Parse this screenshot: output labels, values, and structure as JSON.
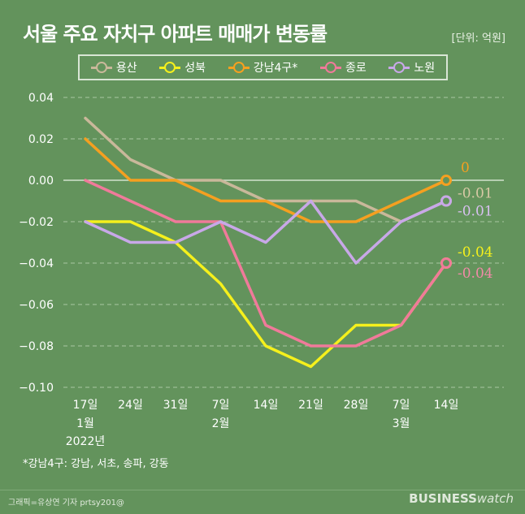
{
  "header": {
    "title": "서울 주요 자치구 아파트 매매가 변동률",
    "unit": "[단위: 억원]"
  },
  "footnote": "*강남4구: 강남, 서초, 송파, 강동",
  "credit": "그래픽=유상연 기자 prtsy201@",
  "brand": {
    "bold": "BUSINESS",
    "light": "watch"
  },
  "chart_data": {
    "type": "line",
    "title": "서울 주요 자치구 아파트 매매가 변동률",
    "unit": "억원",
    "categories": [
      "17일",
      "24일",
      "31일",
      "7일",
      "14일",
      "21일",
      "28일",
      "7일",
      "14일"
    ],
    "x_sub_labels": [
      {
        "index": 0,
        "lines": [
          "1월",
          "2022년"
        ]
      },
      {
        "index": 3,
        "lines": [
          "2월"
        ]
      },
      {
        "index": 7,
        "lines": [
          "3월"
        ]
      }
    ],
    "ylim": [
      -0.1,
      0.04
    ],
    "yticks": [
      "0.04",
      "0.02",
      "0.00",
      "−0.02",
      "−0.04",
      "−0.06",
      "−0.08",
      "−0.10"
    ],
    "grid": true,
    "legend_position": "top",
    "series": [
      {
        "name": "용산",
        "color": "#c9b89a",
        "values": [
          0.03,
          0.01,
          0.0,
          0.0,
          -0.01,
          -0.01,
          -0.01,
          -0.02,
          -0.01
        ],
        "end_label": "-0.01",
        "end_label_color": "#d9c9a6"
      },
      {
        "name": "성북",
        "color": "#f5f01c",
        "values": [
          -0.02,
          -0.02,
          -0.03,
          -0.05,
          -0.08,
          -0.09,
          -0.07,
          -0.07,
          -0.04
        ],
        "end_label": "-0.04",
        "end_label_color": "#f5f01c"
      },
      {
        "name": "강남4구*",
        "color": "#f5a020",
        "values": [
          0.02,
          0.0,
          0.0,
          -0.01,
          -0.01,
          -0.02,
          -0.02,
          -0.01,
          0.0
        ],
        "end_label": "0",
        "end_label_color": "#f5a020"
      },
      {
        "name": "종로",
        "color": "#f07a9a",
        "values": [
          0.0,
          -0.01,
          -0.02,
          -0.02,
          -0.07,
          -0.08,
          -0.08,
          -0.07,
          -0.04
        ],
        "end_label": "-0.04",
        "end_label_color": "#f28aa8"
      },
      {
        "name": "노원",
        "color": "#c8a8e8",
        "values": [
          -0.02,
          -0.03,
          -0.03,
          -0.02,
          -0.03,
          -0.01,
          -0.04,
          -0.02,
          -0.01
        ],
        "end_label": "-0.01",
        "end_label_color": "#d8c0f0"
      }
    ]
  }
}
